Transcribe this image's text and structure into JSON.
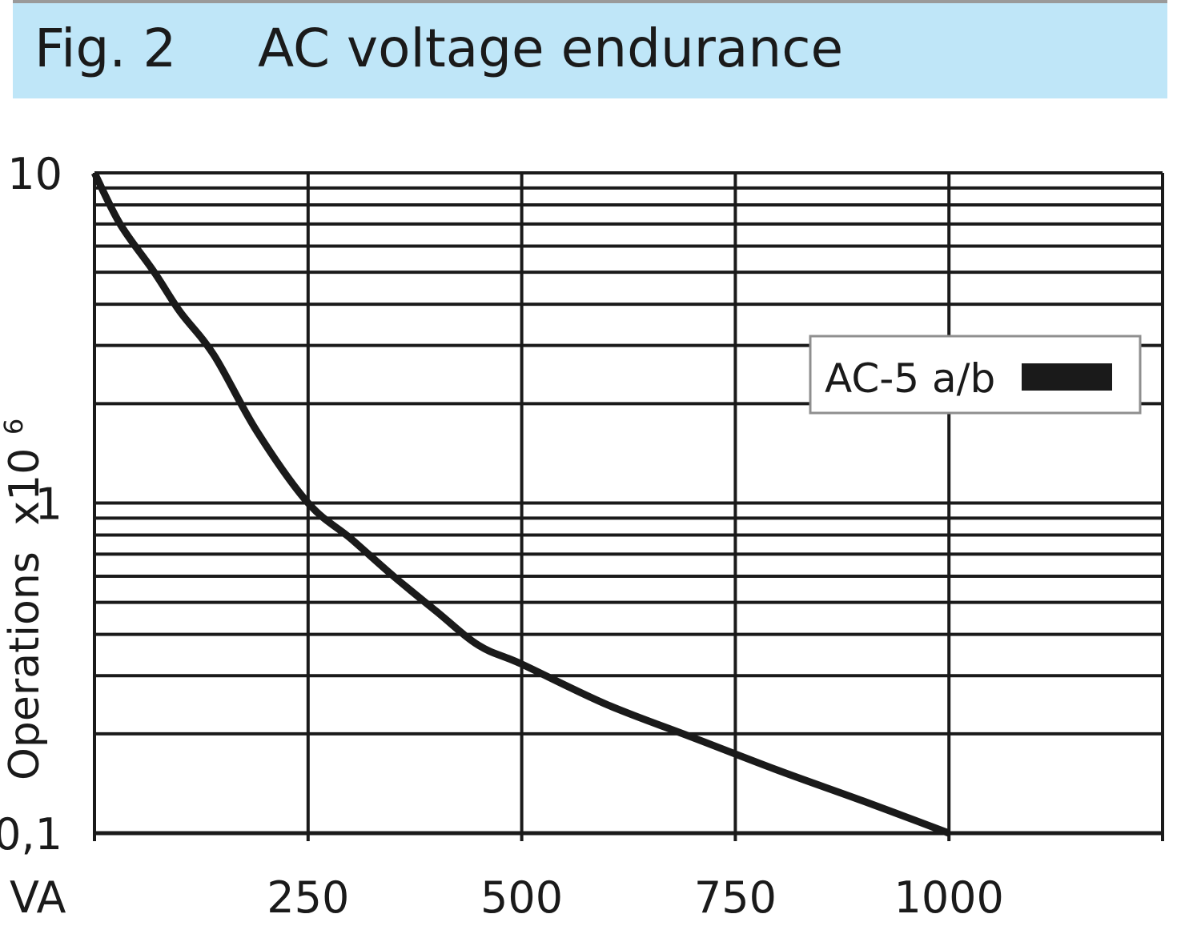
{
  "header": {
    "fig_number": "Fig. 2",
    "title": "AC voltage endurance"
  },
  "chart_data": {
    "type": "line",
    "title": "AC voltage endurance",
    "xlabel": "VA",
    "ylabel": "Operations",
    "ylabel_exponent": "x10",
    "ylabel_exponent_sup": "6",
    "xlim": [
      0,
      1250
    ],
    "ylim": [
      0.1,
      10
    ],
    "yscale": "log",
    "grid": true,
    "x_ticks": [
      250,
      500,
      750,
      1000
    ],
    "x_tick_labels": [
      "250",
      "500",
      "750",
      "1000"
    ],
    "y_tick_labels": [
      {
        "value": 10,
        "label": "10"
      },
      {
        "value": 1,
        "label": "1"
      },
      {
        "value": 0.1,
        "label": "0,1"
      }
    ],
    "legend_position": "right",
    "series": [
      {
        "name": "AC-5 a/b",
        "color": "#1a1a1a",
        "x": [
          0,
          30,
          70,
          100,
          140,
          190,
          250,
          300,
          350,
          400,
          450,
          500,
          600,
          700,
          800,
          900,
          1000
        ],
        "y": [
          10,
          7.0,
          5.0,
          3.8,
          2.8,
          1.65,
          1.0,
          0.78,
          0.6,
          0.47,
          0.37,
          0.325,
          0.245,
          0.195,
          0.155,
          0.125,
          0.1
        ]
      }
    ]
  }
}
